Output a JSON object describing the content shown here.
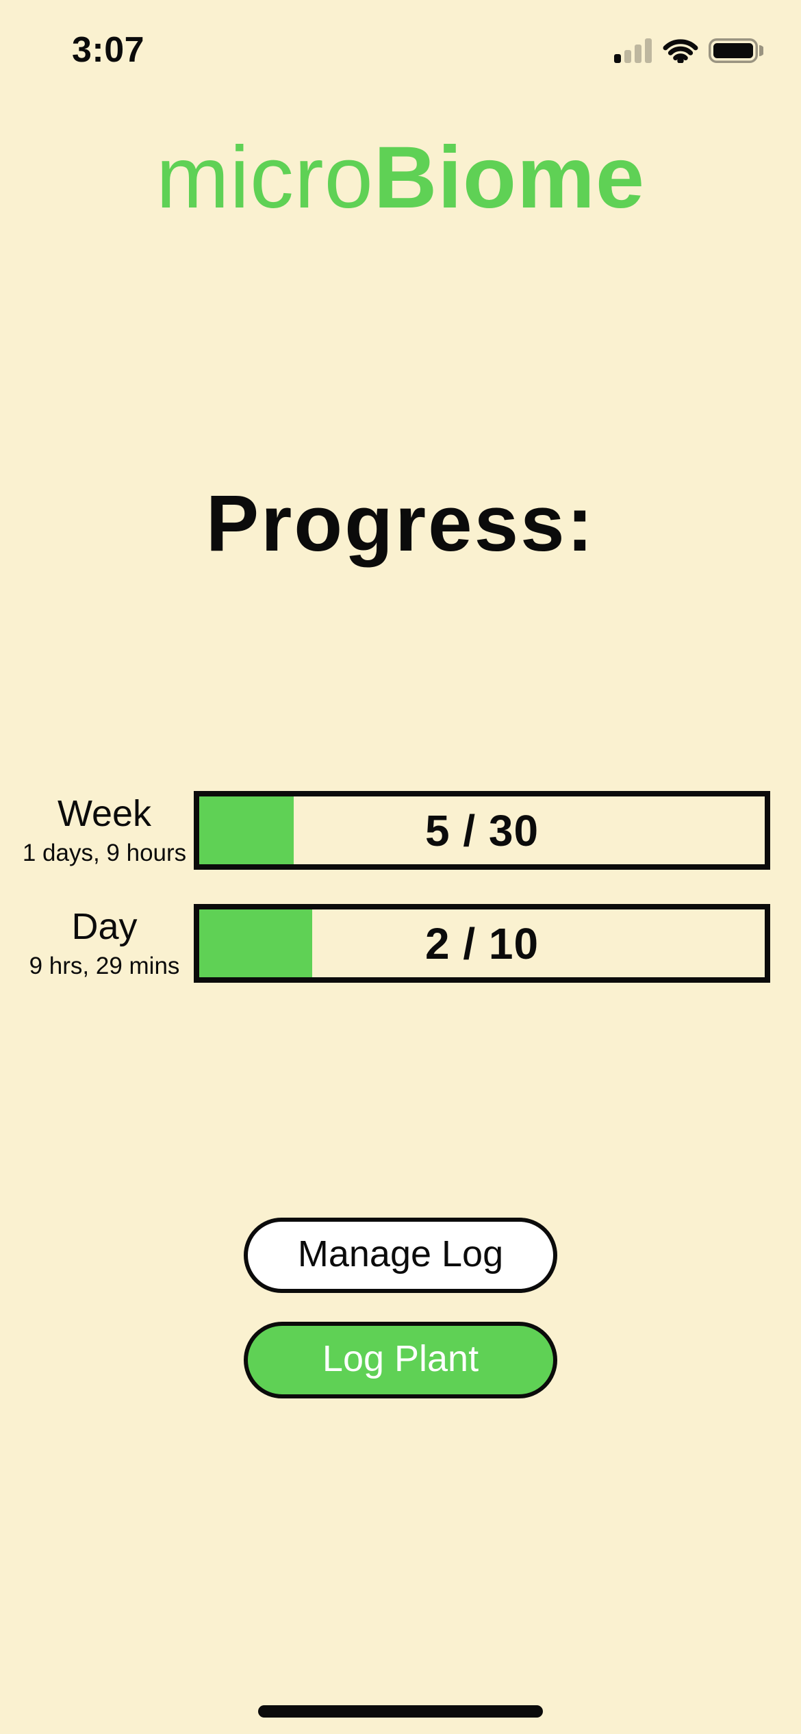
{
  "status_bar": {
    "time": "3:07",
    "cellular": {
      "filled_bars": 1,
      "total_bars": 4
    },
    "wifi": "full",
    "battery": "full"
  },
  "logo": {
    "prefix": "micro",
    "suffix": "Biome"
  },
  "heading": "Progress:",
  "progress": {
    "rows": [
      {
        "label": "Week",
        "sublabel": "1 days, 9 hours",
        "value_text": "5 / 30",
        "current": 5,
        "total": 30
      },
      {
        "label": "Day",
        "sublabel": "9 hrs, 29 mins",
        "value_text": "2 / 10",
        "current": 2,
        "total": 10
      }
    ]
  },
  "buttons": {
    "manage_log": "Manage Log",
    "log_plant": "Log Plant"
  },
  "colors": {
    "background": "#FAF1D0",
    "accent_green": "#5FD155",
    "ink": "#0B0B0B",
    "button_white": "#FFFFFF"
  }
}
